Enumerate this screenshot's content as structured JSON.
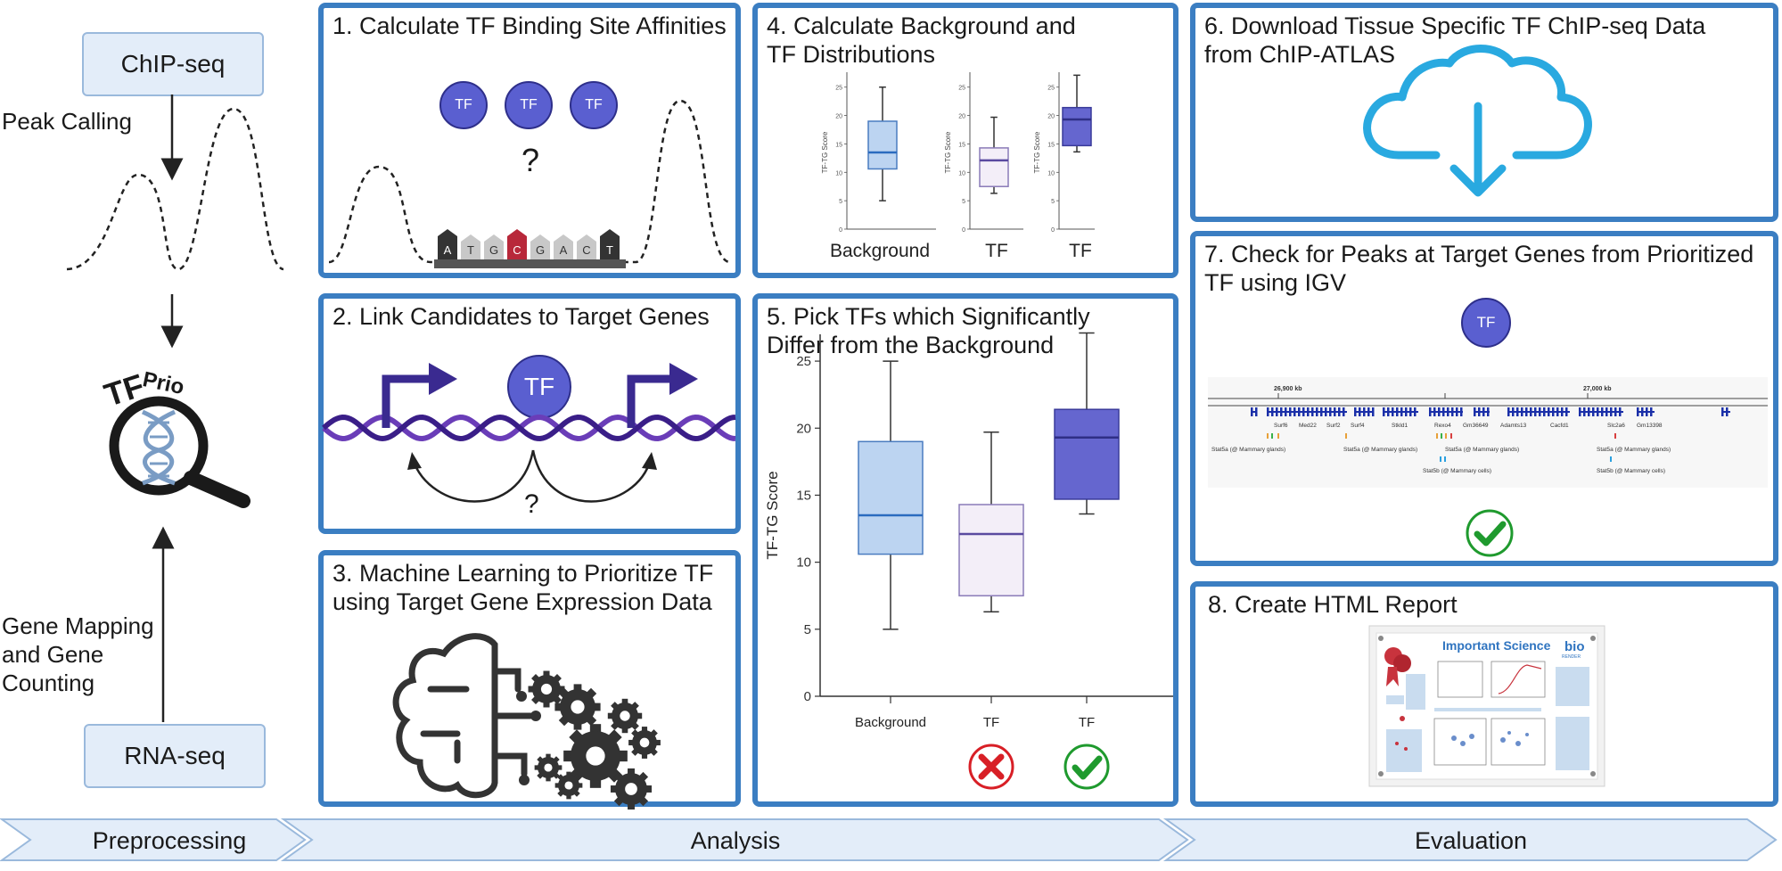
{
  "left": {
    "chipseq": "ChIP-seq",
    "peak_calling": "Peak Calling",
    "logo_tf": "TF",
    "logo_prio": "Prio",
    "gene_mapping_lines": [
      "Gene Mapping",
      "and Gene",
      "Counting"
    ],
    "rnaseq": "RNA-seq"
  },
  "panels": {
    "p1": {
      "title": "1. Calculate TF Binding Site Affinities",
      "tf": "TF",
      "question": "?",
      "bases": [
        "A",
        "T",
        "G",
        "C",
        "G",
        "A",
        "C",
        "T"
      ]
    },
    "p2": {
      "title": "2. Link Candidates to Target Genes",
      "tf": "TF",
      "question": "?"
    },
    "p3": {
      "title_lines": [
        "3. Machine Learning to Prioritize TF",
        "using Target Gene Expression Data"
      ]
    },
    "p4": {
      "title_lines": [
        "4. Calculate Background and",
        "TF Distributions"
      ],
      "ylabel": "TF-TG Score",
      "labels": [
        "Background",
        "TF",
        "TF"
      ],
      "ticks": [
        "0",
        "5",
        "10",
        "15",
        "20",
        "25"
      ]
    },
    "p5": {
      "title_lines": [
        "5. Pick TFs which Significantly",
        "Differ from the Background"
      ]
    },
    "p6": {
      "title_lines": [
        "6. Download Tissue Specific TF ChIP-seq Data",
        "from ChIP-ATLAS"
      ]
    },
    "p7": {
      "title_lines": [
        "7. Check for Peaks at Target Genes from Prioritized",
        "TF using IGV"
      ],
      "tf": "TF",
      "igv": {
        "coord_left": "26,900 kb",
        "coord_right": "27,000 kb",
        "genes": [
          "Surf6",
          "Med22",
          "Surf2",
          "Surf4",
          "Stkld1",
          "Rexo4",
          "Gm36649",
          "Adamts13",
          "Cacfd1",
          "Slc2a6",
          "Gm13398"
        ],
        "tracks": [
          "Stat5a (@ Mammary glands)",
          "Stat5a (@ Mammary glands)",
          "Stat5a (@ Mammary glands)",
          "Stat5a (@ Mammary glands)",
          "Stat5b (@ Mammary cells)",
          "Stat5b (@ Mammary cells)"
        ]
      }
    },
    "p8": {
      "title": "8. Create HTML Report",
      "poster_title": "Important Science",
      "poster_logo_top": "bio",
      "poster_logo_bottom": "RENDER"
    }
  },
  "stages": [
    "Preprocessing",
    "Analysis",
    "Evaluation"
  ],
  "chart_data": {
    "type": "box",
    "ylabel": "TF-TG Score",
    "ylim": [
      0,
      27
    ],
    "categories": [
      "Background",
      "TF",
      "TF"
    ],
    "ticks": [
      0,
      5,
      10,
      15,
      20,
      25
    ],
    "boxes": [
      {
        "min": 5.0,
        "q1": 10.6,
        "median": 13.5,
        "q3": 19.0,
        "max": 25.0,
        "color": "#bcd4f1",
        "stroke": "#4a7cc0",
        "median_color": "#2a6bbf",
        "status": "rejected"
      },
      {
        "min": 6.3,
        "q1": 7.5,
        "median": 12.1,
        "q3": 14.3,
        "max": 19.7,
        "color": "#f3eef8",
        "stroke": "#8a7bb8",
        "median_color": "#5a4aa0",
        "status": "rejected"
      },
      {
        "min": 13.6,
        "q1": 14.7,
        "median": 19.3,
        "q3": 21.4,
        "max": 27.1,
        "color": "#6566cf",
        "stroke": "#3a3b9a",
        "median_color": "#2f2f86",
        "status": "accepted"
      }
    ]
  }
}
